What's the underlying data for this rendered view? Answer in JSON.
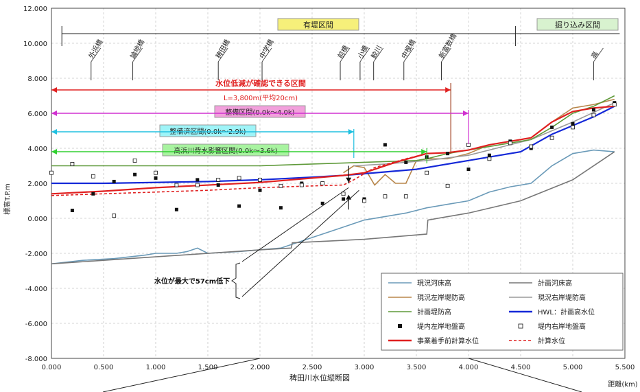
{
  "chart_data": {
    "type": "line",
    "xlabel": "稗田川水位縦断図",
    "xunit": "距離(km)",
    "ylabel": "標高T.P.m",
    "xlim": [
      0,
      5.5
    ],
    "ylim": [
      -8,
      12
    ],
    "xticks": [
      0,
      0.5,
      1,
      1.5,
      2,
      2.5,
      3,
      3.5,
      4,
      4.5,
      5,
      5.5
    ],
    "xtick_labels": [
      "0.000",
      "0.500",
      "1.000",
      "1.500",
      "2.000",
      "2.500",
      "3.000",
      "3.500",
      "4.000",
      "4.500",
      "5.000",
      "5.500"
    ],
    "yticks": [
      -8,
      -6,
      -4,
      -2,
      0,
      2,
      4,
      6,
      8,
      10,
      12
    ],
    "ytick_labels": [
      "-8.000",
      "-6.000",
      "-4.000",
      "-2.000",
      "0.000",
      "2.000",
      "4.000",
      "6.000",
      "8.000",
      "10.000",
      "12.000"
    ],
    "grid": true,
    "legend_position": "bottom-right",
    "section_labels": {
      "levee_section": "有堤区間",
      "cut_section": "掘り込み区間"
    },
    "bridges": [
      {
        "name": "外浜橋",
        "x": 0.38
      },
      {
        "name": "論地橋",
        "x": 0.78
      },
      {
        "name": "稗田橋",
        "x": 1.6
      },
      {
        "name": "中学橋",
        "x": 2.02
      },
      {
        "name": "前橋",
        "x": 2.77
      },
      {
        "name": "小橋",
        "x": 2.96
      },
      {
        "name": "鮫川",
        "x": 3.09
      },
      {
        "name": "中根橋",
        "x": 3.38
      },
      {
        "name": "新富数橋",
        "x": 3.74
      },
      {
        "name": "高",
        "x": 5.2
      }
    ],
    "annotations": {
      "reduction_section": "水位低減が確認できる区間",
      "length_note": "L=3,800m(平均20cm)",
      "improvement_section": "整備区間(0.0k～4.0k)",
      "improved_section": "整備済区間(0.0k～2.9k)",
      "tide_section": "高浜川背水影響区間(0.0k～3.6k)",
      "max_reduction": "水位が最大で57cm低下"
    },
    "series": [
      {
        "name": "現況河床高",
        "color": "#6a9ab8",
        "x": [
          0,
          0.3,
          0.6,
          0.9,
          1.0,
          1.2,
          1.3,
          1.4,
          1.5,
          1.8,
          2.0,
          2.2,
          2.3,
          2.5,
          2.7,
          2.9,
          3.0,
          3.2,
          3.4,
          3.6,
          3.8,
          4.0,
          4.2,
          4.4,
          4.6,
          4.8,
          5.0,
          5.2,
          5.4
        ],
        "y": [
          -2.6,
          -2.4,
          -2.3,
          -2.1,
          -2.0,
          -2.0,
          -1.9,
          -1.7,
          -2.0,
          -1.9,
          -1.8,
          -1.7,
          -1.5,
          -1.1,
          -0.7,
          -0.3,
          -0.1,
          0.1,
          0.3,
          0.6,
          0.8,
          1.0,
          1.5,
          1.8,
          2.0,
          3.0,
          3.7,
          3.9,
          3.8
        ]
      },
      {
        "name": "計画河床高",
        "color": "#777777",
        "x": [
          0,
          1.0,
          2.0,
          2.3,
          2.31,
          3.0,
          3.6,
          3.61,
          4.0,
          4.5,
          5.0,
          5.4
        ],
        "y": [
          -2.6,
          -2.2,
          -1.8,
          -1.7,
          -1.4,
          -1.2,
          -0.9,
          -0.1,
          0.3,
          1.0,
          2.2,
          3.8
        ]
      },
      {
        "name": "現況左岸堤防高",
        "color": "#b8864a",
        "x": [
          2.8,
          2.9,
          3.0,
          3.1,
          3.2,
          3.3,
          3.4,
          3.5,
          3.6,
          3.8,
          4.0,
          4.2,
          4.4,
          4.6,
          4.8,
          5.0,
          5.2,
          5.4
        ],
        "y": [
          2.6,
          3.0,
          2.9,
          1.9,
          2.5,
          2.0,
          2.0,
          3.3,
          3.4,
          3.4,
          3.7,
          4.2,
          4.4,
          4.6,
          5.5,
          6.3,
          6.5,
          6.8
        ]
      },
      {
        "name": "現況右岸堤防高",
        "color": "#9a9a9a",
        "x": [
          2.9,
          3.2,
          3.6,
          4.0,
          4.4,
          4.6,
          5.0,
          5.4
        ],
        "y": [
          3.0,
          3.1,
          3.3,
          3.6,
          4.2,
          4.5,
          5.5,
          6.6
        ]
      },
      {
        "name": "計画堤防高",
        "color": "#5f9a3a",
        "x": [
          0,
          0.5,
          1.0,
          1.5,
          2.0,
          2.5,
          3.0,
          3.5,
          3.6,
          3.8,
          4.0,
          4.2,
          4.4,
          4.6,
          4.8,
          5.0,
          5.2,
          5.4
        ],
        "y": [
          3.0,
          3.0,
          3.0,
          3.0,
          3.0,
          3.1,
          3.2,
          3.3,
          3.4,
          3.7,
          3.9,
          4.1,
          4.3,
          4.5,
          5.2,
          6.0,
          6.4,
          7.0
        ]
      },
      {
        "name": "HWL：計画高水位",
        "color": "#1428d8",
        "x": [
          0,
          0.5,
          1.0,
          1.5,
          2.0,
          2.5,
          2.8,
          3.0,
          3.5,
          4.0,
          4.5,
          4.8,
          5.0,
          5.2,
          5.4
        ],
        "y": [
          2.0,
          2.0,
          2.05,
          2.1,
          2.2,
          2.35,
          2.45,
          2.55,
          2.8,
          3.3,
          3.8,
          4.8,
          5.3,
          5.8,
          6.4
        ]
      },
      {
        "name": "事業着手前計算水位",
        "color": "#e02020",
        "x": [
          0,
          0.5,
          1.0,
          1.5,
          2.0,
          2.5,
          2.8,
          3.0,
          3.3,
          3.6,
          3.8,
          4.0,
          4.2,
          4.4,
          4.6,
          4.8,
          5.0,
          5.2,
          5.4
        ],
        "y": [
          1.4,
          1.55,
          1.75,
          1.9,
          2.05,
          2.3,
          2.45,
          2.6,
          3.2,
          3.7,
          3.75,
          3.9,
          4.2,
          4.4,
          4.6,
          5.5,
          6.1,
          6.3,
          6.4
        ]
      },
      {
        "name": "計算水位",
        "color": "#e02020",
        "x": [
          0,
          0.5,
          1.0,
          1.5,
          2.0,
          2.5,
          2.8,
          2.9,
          3.1,
          3.4,
          3.6
        ],
        "y": [
          1.3,
          1.4,
          1.5,
          1.6,
          1.75,
          1.85,
          1.9,
          2.2,
          2.9,
          3.4,
          3.7
        ]
      }
    ],
    "scatter": [
      {
        "name": "堤内左岸地盤高",
        "marker": "filled-square",
        "color": "#111111",
        "x": [
          0.2,
          0.4,
          0.6,
          0.8,
          1.0,
          1.2,
          1.4,
          1.6,
          1.8,
          2.0,
          2.2,
          2.4,
          2.6,
          2.8,
          3.0,
          3.2,
          3.4,
          3.6,
          3.8,
          4.0,
          4.2,
          4.4,
          4.6,
          4.8,
          5.0,
          5.2,
          5.4
        ],
        "y": [
          0.45,
          1.4,
          2.1,
          2.5,
          2.3,
          0.5,
          2.2,
          1.9,
          0.7,
          1.6,
          0.6,
          2.0,
          0.85,
          1.1,
          1.1,
          4.2,
          3.2,
          3.5,
          3.7,
          2.8,
          3.6,
          4.4,
          4.0,
          5.2,
          5.4,
          6.2,
          6.6
        ]
      },
      {
        "name": "堤内右岸地盤高",
        "marker": "open-square",
        "color": "#111111",
        "x": [
          0,
          0.2,
          0.4,
          0.6,
          0.8,
          1.0,
          1.2,
          1.4,
          1.6,
          1.8,
          2.0,
          2.2,
          2.4,
          2.6,
          2.8,
          3.0,
          3.2,
          3.4,
          3.6,
          3.8,
          4.0,
          4.2,
          4.4,
          4.6,
          4.8,
          5.0,
          5.2,
          5.4
        ],
        "y": [
          2.6,
          3.1,
          2.4,
          0.15,
          3.3,
          2.6,
          1.9,
          1.9,
          2.2,
          2.3,
          2.2,
          1.85,
          1.9,
          2.0,
          1.4,
          1.0,
          1.25,
          1.25,
          2.6,
          1.85,
          4.2,
          3.4,
          4.3,
          4.1,
          4.6,
          5.2,
          5.9,
          6.5
        ]
      }
    ]
  }
}
